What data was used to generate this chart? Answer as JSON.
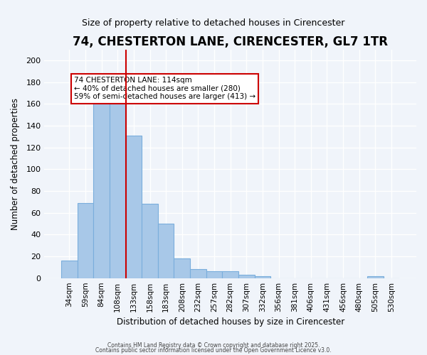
{
  "title": "74, CHESTERTON LANE, CIRENCESTER, GL7 1TR",
  "subtitle": "Size of property relative to detached houses in Cirencester",
  "xlabel": "Distribution of detached houses by size in Cirencester",
  "ylabel": "Number of detached properties",
  "bar_labels": [
    "34sqm",
    "59sqm",
    "84sqm",
    "108sqm",
    "133sqm",
    "158sqm",
    "183sqm",
    "208sqm",
    "232sqm",
    "257sqm",
    "282sqm",
    "307sqm",
    "332sqm",
    "356sqm",
    "381sqm",
    "406sqm",
    "431sqm",
    "456sqm",
    "480sqm",
    "505sqm",
    "530sqm"
  ],
  "bar_values": [
    16,
    69,
    161,
    163,
    131,
    68,
    50,
    18,
    8,
    6,
    6,
    3,
    2,
    0,
    0,
    0,
    0,
    0,
    0,
    2,
    0
  ],
  "bar_color": "#a8c8e8",
  "bar_edge_color": "#7aaedc",
  "ylim": [
    0,
    210
  ],
  "yticks": [
    0,
    20,
    40,
    60,
    80,
    100,
    120,
    140,
    160,
    180,
    200
  ],
  "vline_x": 3,
  "vline_color": "#cc0000",
  "annotation_title": "74 CHESTERTON LANE: 114sqm",
  "annotation_line1": "← 40% of detached houses are smaller (280)",
  "annotation_line2": "59% of semi-detached houses are larger (413) →",
  "annotation_box_color": "#ffffff",
  "annotation_box_edge": "#cc0000",
  "background_color": "#f0f4fa",
  "grid_color": "#ffffff",
  "footer1": "Contains HM Land Registry data © Crown copyright and database right 2025.",
  "footer2": "Contains public sector information licensed under the Open Government Licence v3.0."
}
